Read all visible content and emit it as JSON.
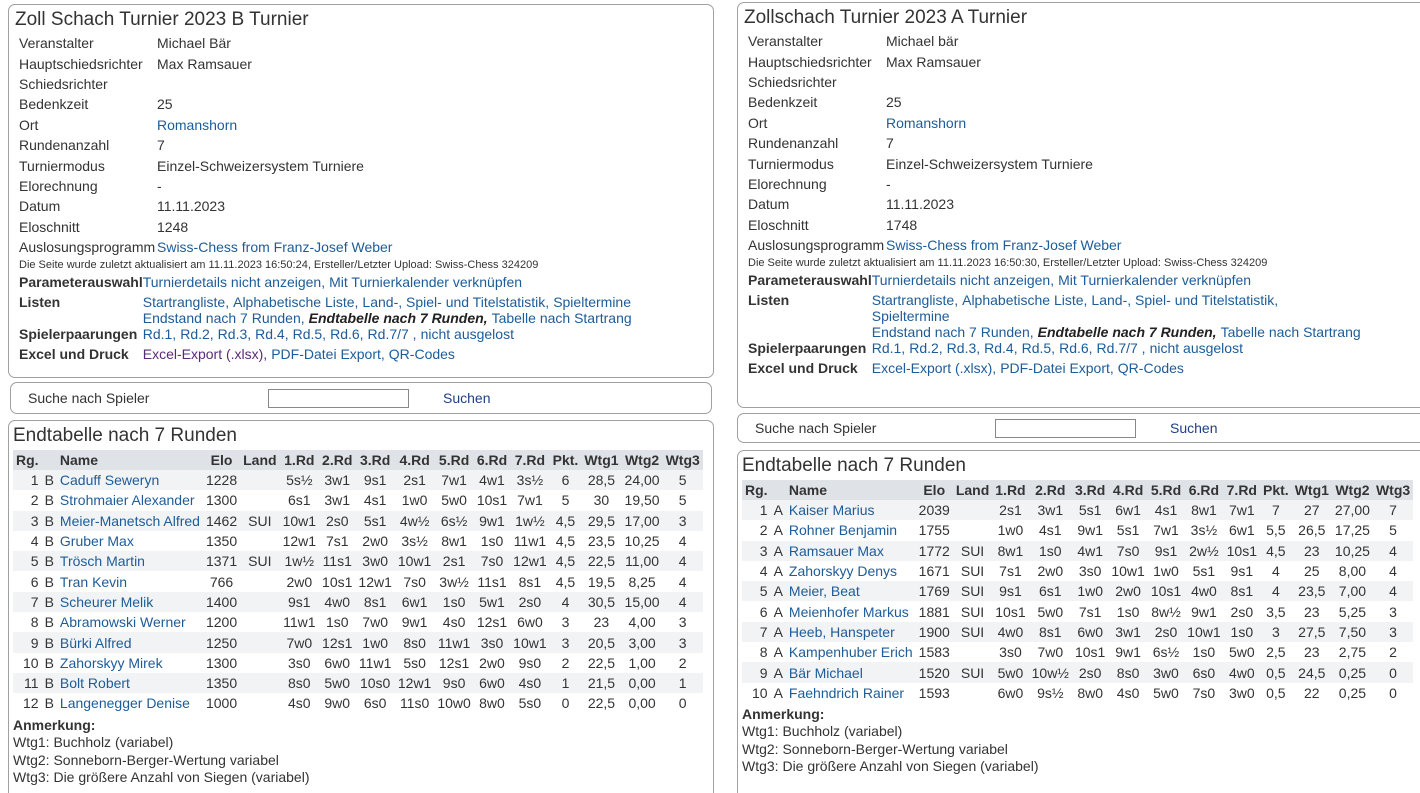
{
  "left": {
    "title": "Zoll Schach Turnier 2023 B Turnier",
    "info": [
      [
        "Veranstalter",
        "Michael Bär"
      ],
      [
        "Hauptschiedsrichter",
        "Max Ramsauer"
      ],
      [
        "Schiedsrichter",
        null
      ],
      [
        "Bedenkzeit",
        "25"
      ],
      [
        "Ort",
        "Romanshorn"
      ],
      [
        "Rundenanzahl",
        "7"
      ],
      [
        "Turniermodus",
        "Einzel-Schweizersystem Turniere"
      ],
      [
        "Elorechnung",
        "-"
      ],
      [
        "Datum",
        "11.11.2023"
      ],
      [
        "Eloschnitt",
        "1248"
      ],
      [
        "Auslosungsprogramm",
        "Swiss-Chess from Franz-Josef Weber"
      ]
    ],
    "updated": "Die Seite wurde zuletzt aktualisiert am 11.11.2023 16:50:24, Ersteller/Letzter Upload: Swiss-Chess 324209",
    "menu": [
      {
        "label": "Parameterauswahl",
        "lines": [
          [
            "Turnierdetails nicht anzeigen,",
            "Mit Turnierkalender verknüpfen"
          ]
        ]
      },
      {
        "label": "Listen",
        "lines": [
          [
            "Startrangliste,",
            "Alphabetische Liste,",
            "Land-, Spiel- und Titelstatistik,",
            "Spieltermine"
          ],
          [
            "Endstand nach 7 Runden,",
            "Endtabelle nach 7 Runden,",
            "Tabelle nach Startrang"
          ]
        ]
      },
      {
        "label": "Spielerpaarungen",
        "lines": [
          [
            "Rd.1,",
            "Rd.2,",
            "Rd.3,",
            "Rd.4,",
            "Rd.5,",
            "Rd.6,",
            "Rd.7/7 ,",
            "nicht ausgelost"
          ]
        ]
      },
      {
        "label": "Excel und Druck",
        "lines": [
          [
            "Excel-Export (.xlsx),",
            "PDF-Datei Export,",
            "QR-Codes"
          ]
        ]
      }
    ],
    "search": {
      "label": "Suche nach Spieler",
      "button": "Suchen"
    },
    "table": {
      "title": "Endtabelle nach 7 Runden",
      "headers": [
        "Rg.",
        null,
        "Name",
        "Elo",
        "Land",
        "1.Rd",
        "2.Rd",
        "3.Rd",
        "4.Rd",
        "5.Rd",
        "6.Rd",
        "7.Rd",
        "Pkt.",
        "Wtg1",
        "Wtg2",
        "Wtg3"
      ],
      "rows": [
        [
          "1",
          "B",
          "Caduff Seweryn",
          "1228",
          null,
          "5s½",
          "3w1",
          "9s1",
          "2s1",
          "7w1",
          "4w1",
          "3s½",
          "6",
          "28,5",
          "24,00",
          "5"
        ],
        [
          "2",
          "B",
          "Strohmaier Alexander",
          "1300",
          null,
          "6s1",
          "3w1",
          "4s1",
          "1w0",
          "5w0",
          "10s1",
          "7w1",
          "5",
          "30",
          "19,50",
          "5"
        ],
        [
          "3",
          "B",
          "Meier-Manetsch Alfred",
          "1462",
          "SUI",
          "10w1",
          "2s0",
          "5s1",
          "4w½",
          "6s½",
          "9w1",
          "1w½",
          "4,5",
          "29,5",
          "17,00",
          "3"
        ],
        [
          "4",
          "B",
          "Gruber Max",
          "1350",
          null,
          "12w1",
          "7s1",
          "2w0",
          "3s½",
          "8w1",
          "1s0",
          "11w1",
          "4,5",
          "23,5",
          "10,25",
          "4"
        ],
        [
          "5",
          "B",
          "Trösch Martin",
          "1371",
          "SUI",
          "1w½",
          "11s1",
          "3w0",
          "10w1",
          "2s1",
          "7s0",
          "12w1",
          "4,5",
          "22,5",
          "11,00",
          "4"
        ],
        [
          "6",
          "B",
          "Tran Kevin",
          "766",
          null,
          "2w0",
          "10s1",
          "12w1",
          "7s0",
          "3w½",
          "11s1",
          "8s1",
          "4,5",
          "19,5",
          "8,25",
          "4"
        ],
        [
          "7",
          "B",
          "Scheurer Melik",
          "1400",
          null,
          "9s1",
          "4w0",
          "8s1",
          "6w1",
          "1s0",
          "5w1",
          "2s0",
          "4",
          "30,5",
          "15,00",
          "4"
        ],
        [
          "8",
          "B",
          "Abramowski Werner",
          "1200",
          null,
          "11w1",
          "1s0",
          "7w0",
          "9w1",
          "4s0",
          "12s1",
          "6w0",
          "3",
          "23",
          "4,00",
          "3"
        ],
        [
          "9",
          "B",
          "Bürki Alfred",
          "1250",
          null,
          "7w0",
          "12s1",
          "1w0",
          "8s0",
          "11w1",
          "3s0",
          "10w1",
          "3",
          "20,5",
          "3,00",
          "3"
        ],
        [
          "10",
          "B",
          "Zahorskyy Mirek",
          "1300",
          null,
          "3s0",
          "6w0",
          "11w1",
          "5s0",
          "12s1",
          "2w0",
          "9s0",
          "2",
          "22,5",
          "1,00",
          "2"
        ],
        [
          "11",
          "B",
          "Bolt Robert",
          "1350",
          null,
          "8s0",
          "5w0",
          "10s0",
          "12w1",
          "9s0",
          "6w0",
          "4s0",
          "1",
          "21,5",
          "0,00",
          "1"
        ],
        [
          "12",
          "B",
          "Langenegger Denise",
          "1000",
          null,
          "4s0",
          "9w0",
          "6s0",
          "11s0",
          "10w0",
          "8w0",
          "5s0",
          "0",
          "22,5",
          "0,00",
          "0"
        ]
      ]
    },
    "notes": [
      "Anmerkung:",
      "Wtg1: Buchholz (variabel)",
      "Wtg2: Sonneborn-Berger-Wertung variabel",
      "Wtg3: Die größere Anzahl von Siegen (variabel)"
    ]
  },
  "right": {
    "title": "Zollschach Turnier 2023 A Turnier",
    "info": [
      [
        "Veranstalter",
        "Michael bär"
      ],
      [
        "Hauptschiedsrichter",
        "Max Ramsauer"
      ],
      [
        "Schiedsrichter",
        null
      ],
      [
        "Bedenkzeit",
        "25"
      ],
      [
        "Ort",
        "Romanshorn"
      ],
      [
        "Rundenanzahl",
        "7"
      ],
      [
        "Turniermodus",
        "Einzel-Schweizersystem Turniere"
      ],
      [
        "Elorechnung",
        "-"
      ],
      [
        "Datum",
        "11.11.2023"
      ],
      [
        "Eloschnitt",
        "1748"
      ],
      [
        "Auslosungsprogramm",
        "Swiss-Chess from Franz-Josef Weber"
      ]
    ],
    "updated": "Die Seite wurde zuletzt aktualisiert am 11.11.2023 16:50:30, Ersteller/Letzter Upload: Swiss-Chess 324209",
    "menu": [
      {
        "label": "Parameterauswahl",
        "lines": [
          [
            "Turnierdetails nicht anzeigen,",
            "Mit Turnierkalender verknüpfen"
          ]
        ]
      },
      {
        "label": "Listen",
        "lines": [
          [
            "Startrangliste,",
            "Alphabetische Liste,",
            "Land-, Spiel- und Titelstatistik,"
          ],
          [
            "Spieltermine"
          ],
          [
            "Endstand nach 7 Runden,",
            "Endtabelle nach 7 Runden,",
            "Tabelle nach Startrang"
          ]
        ]
      },
      {
        "label": "Spielerpaarungen",
        "lines": [
          [
            "Rd.1,",
            "Rd.2,",
            "Rd.3,",
            "Rd.4,",
            "Rd.5,",
            "Rd.6,",
            "Rd.7/7 ,",
            "nicht ausgelost"
          ]
        ]
      },
      {
        "label": "Excel und Druck",
        "lines": [
          [
            "Excel-Export (.xlsx),",
            "PDF-Datei Export,",
            "QR-Codes"
          ]
        ]
      }
    ],
    "search": {
      "label": "Suche nach Spieler",
      "button": "Suchen"
    },
    "table": {
      "title": "Endtabelle nach 7 Runden",
      "headers": [
        "Rg.",
        null,
        "Name",
        "Elo",
        "Land",
        "1.Rd",
        "2.Rd",
        "3.Rd",
        "4.Rd",
        "5.Rd",
        "6.Rd",
        "7.Rd",
        "Pkt.",
        "Wtg1",
        "Wtg2",
        "Wtg3"
      ],
      "rows": [
        [
          "1",
          "A",
          "Kaiser Marius",
          "2039",
          null,
          "2s1",
          "3w1",
          "5s1",
          "6w1",
          "4s1",
          "8w1",
          "7w1",
          "7",
          "27",
          "27,00",
          "7"
        ],
        [
          "2",
          "A",
          "Rohner Benjamin",
          "1755",
          null,
          "1w0",
          "4s1",
          "9w1",
          "5s1",
          "7w1",
          "3s½",
          "6w1",
          "5,5",
          "26,5",
          "17,25",
          "5"
        ],
        [
          "3",
          "A",
          "Ramsauer Max",
          "1772",
          "SUI",
          "8w1",
          "1s0",
          "4w1",
          "7s0",
          "9s1",
          "2w½",
          "10s1",
          "4,5",
          "23",
          "10,25",
          "4"
        ],
        [
          "4",
          "A",
          "Zahorskyy Denys",
          "1671",
          "SUI",
          "7s1",
          "2w0",
          "3s0",
          "10w1",
          "1w0",
          "5s1",
          "9s1",
          "4",
          "25",
          "8,00",
          "4"
        ],
        [
          "5",
          "A",
          "Meier, Beat",
          "1769",
          "SUI",
          "9s1",
          "6s1",
          "1w0",
          "2w0",
          "10s1",
          "4w0",
          "8s1",
          "4",
          "23,5",
          "7,00",
          "4"
        ],
        [
          "6",
          "A",
          "Meienhofer Markus",
          "1881",
          "SUI",
          "10s1",
          "5w0",
          "7s1",
          "1s0",
          "8w½",
          "9w1",
          "2s0",
          "3,5",
          "23",
          "5,25",
          "3"
        ],
        [
          "7",
          "A",
          "Heeb, Hanspeter",
          "1900",
          "SUI",
          "4w0",
          "8s1",
          "6w0",
          "3w1",
          "2s0",
          "10w1",
          "1s0",
          "3",
          "27,5",
          "7,50",
          "3"
        ],
        [
          "8",
          "A",
          "Kampenhuber Erich",
          "1583",
          null,
          "3s0",
          "7w0",
          "10s1",
          "9w1",
          "6s½",
          "1s0",
          "5w0",
          "2,5",
          "23",
          "2,75",
          "2"
        ],
        [
          "9",
          "A",
          "Bär Michael",
          "1520",
          "SUI",
          "5w0",
          "10w½",
          "2s0",
          "8s0",
          "3w0",
          "6s0",
          "4w0",
          "0,5",
          "24,5",
          "0,25",
          "0"
        ],
        [
          "10",
          "A",
          "Faehndrich Rainer",
          "1593",
          null,
          "6w0",
          "9s½",
          "8w0",
          "4s0",
          "5w0",
          "7s0",
          "3w0",
          "0,5",
          "22",
          "0,25",
          "0"
        ]
      ]
    },
    "notes": [
      "Anmerkung:",
      "Wtg1: Buchholz (variabel)",
      "Wtg2: Sonneborn-Berger-Wertung variabel",
      "Wtg3: Die größere Anzahl von Siegen (variabel)"
    ]
  }
}
